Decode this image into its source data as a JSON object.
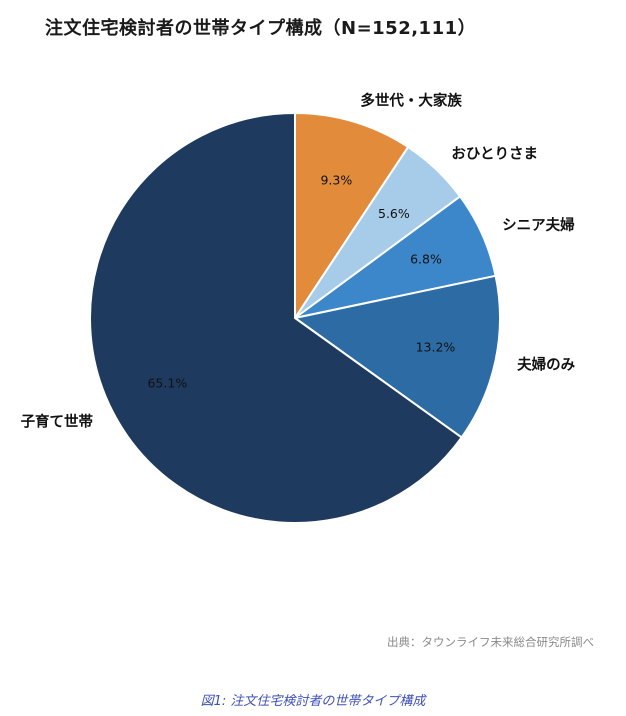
{
  "title": "注文住宅検討者の世帯タイプ構成（N=152,111）",
  "source": "出典：タウンライフ未来総合研究所調べ",
  "caption": "図1: 注文住宅検討者の世帯タイプ構成",
  "chart_data": {
    "type": "pie",
    "title": "注文住宅検討者の世帯タイプ構成（N=152,111）",
    "n_total": "152,111",
    "categories": [
      "多世代・大家族",
      "おひとりさま",
      "シニア夫婦",
      "夫婦のみ",
      "子育て世帯"
    ],
    "values": [
      9.3,
      5.6,
      6.8,
      13.2,
      65.1
    ],
    "unit": "%",
    "colors": [
      "#e28b3b",
      "#a7cce9",
      "#3c87c9",
      "#2d6ba5",
      "#1f3a5f"
    ],
    "start_angle_deg": 0,
    "direction": "clockwise",
    "labels_outside": true,
    "percent_labels_inside": true,
    "legend": "none"
  }
}
